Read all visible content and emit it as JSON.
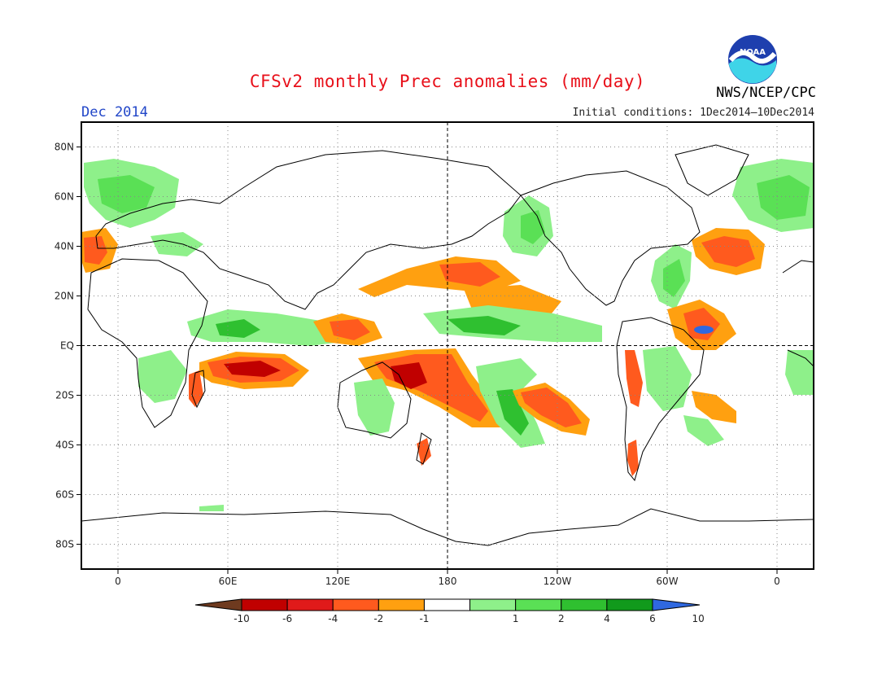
{
  "title": "CFSv2 monthly Prec anomalies (mm/day)",
  "month": "Dec 2014",
  "initial_conditions": "Initial conditions: 1Dec2014–10Dec2014",
  "agency": "NWS/NCEP/CPC",
  "logo": {
    "text": "NOAA",
    "icon": "noaa-logo-icon"
  },
  "lat_labels": [
    "80N",
    "60N",
    "40N",
    "20N",
    "EQ",
    "20S",
    "40S",
    "60S",
    "80S"
  ],
  "lat_values": [
    80,
    60,
    40,
    20,
    0,
    -20,
    -40,
    -60,
    -80
  ],
  "lon_labels": [
    "0",
    "60E",
    "120E",
    "180",
    "120W",
    "60W",
    "0"
  ],
  "lon_values": [
    0,
    60,
    120,
    180,
    240,
    300,
    360
  ],
  "extent": {
    "lon_min": -20,
    "lon_max": 380,
    "lat_min": -90,
    "lat_max": 90
  },
  "legend": {
    "labels": [
      "-10",
      "-6",
      "-4",
      "-2",
      "-1",
      "1",
      "2",
      "4",
      "6",
      "10"
    ],
    "colors": [
      "#6e3a1f",
      "#c00000",
      "#e01a1a",
      "#ff5a1e",
      "#ffa010",
      "#ffffff",
      "#8ef08a",
      "#5ae055",
      "#2fc030",
      "#119a1c",
      "#2f68e0"
    ]
  },
  "colors": {
    "dry_strong": "#c00000",
    "dry_mid": "#ff5a1e",
    "dry_weak": "#ffa010",
    "wet_weak": "#8ef08a",
    "wet_mid": "#5ae055",
    "wet_strong": "#2fc030",
    "wet_max": "#119a1c",
    "extreme_wet": "#2f68e0"
  }
}
